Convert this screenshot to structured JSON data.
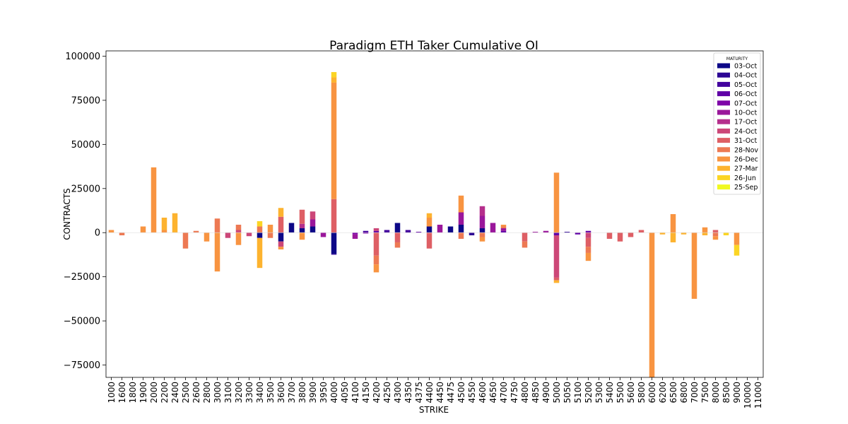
{
  "chart_data": {
    "type": "bar",
    "stacked": true,
    "title": "Paradigm ETH Taker Cumulative OI",
    "xlabel": "STRIKE",
    "ylabel": "CONTRACTS",
    "ylim": [
      -82000,
      103000
    ],
    "yticks": [
      -75000,
      -50000,
      -25000,
      0,
      25000,
      50000,
      75000,
      100000
    ],
    "ytick_labels": [
      "−75000",
      "−50000",
      "−25000",
      "0",
      "25000",
      "50000",
      "75000",
      "100000"
    ],
    "grid": false,
    "legend": {
      "title": "MATURITY",
      "position": "top-right"
    },
    "categories": [
      "1000",
      "1600",
      "1800",
      "1900",
      "2000",
      "2200",
      "2400",
      "2500",
      "2600",
      "2800",
      "3000",
      "3100",
      "3200",
      "3300",
      "3400",
      "3500",
      "3600",
      "3700",
      "3800",
      "3900",
      "3950",
      "4000",
      "4050",
      "4100",
      "4150",
      "4200",
      "4250",
      "4300",
      "4350",
      "4375",
      "4400",
      "4450",
      "4475",
      "4500",
      "4550",
      "4600",
      "4650",
      "4700",
      "4750",
      "4800",
      "4850",
      "4900",
      "5000",
      "5050",
      "5100",
      "5200",
      "5300",
      "5400",
      "5500",
      "5600",
      "5800",
      "6000",
      "6200",
      "6500",
      "6800",
      "7000",
      "7500",
      "8000",
      "8500",
      "9000",
      "10000",
      "11000"
    ],
    "series": [
      {
        "name": "03-Oct",
        "color": "#0d0887",
        "values": [
          0,
          0,
          0,
          0,
          0,
          0,
          0,
          0,
          0,
          0,
          0,
          0,
          0,
          0,
          -3000,
          0,
          -5000,
          5500,
          2500,
          3500,
          0,
          -12000,
          0,
          0,
          0,
          0,
          0,
          5500,
          0,
          0,
          3500,
          0,
          3500,
          4500,
          0,
          2500,
          0,
          0,
          0,
          0,
          0,
          0,
          0,
          0,
          0,
          0,
          0,
          0,
          0,
          0,
          0,
          0,
          0,
          0,
          0,
          0,
          0,
          0,
          0,
          0,
          0,
          0
        ]
      },
      {
        "name": "04-Oct",
        "color": "#2c0594",
        "values": [
          0,
          0,
          0,
          0,
          0,
          0,
          0,
          0,
          0,
          0,
          0,
          0,
          0,
          0,
          0,
          0,
          0,
          0,
          0,
          0,
          0,
          -500,
          0,
          0,
          0,
          0,
          0,
          0,
          0,
          0,
          0,
          0,
          0,
          0,
          -1500,
          0,
          0,
          0,
          0,
          0,
          0,
          0,
          0,
          500,
          0,
          0,
          0,
          0,
          0,
          0,
          0,
          0,
          0,
          0,
          0,
          0,
          0,
          0,
          0,
          0,
          0,
          0
        ]
      },
      {
        "name": "05-Oct",
        "color": "#43039e",
        "values": [
          0,
          0,
          0,
          0,
          0,
          0,
          0,
          0,
          0,
          0,
          0,
          0,
          0,
          0,
          0,
          0,
          0,
          0,
          0,
          0,
          0,
          0,
          0,
          0,
          1000,
          0,
          1500,
          0,
          1500,
          0,
          0,
          0,
          0,
          0,
          0,
          0,
          0,
          0,
          0,
          0,
          0,
          0,
          0,
          0,
          0,
          0,
          0,
          0,
          0,
          0,
          0,
          0,
          0,
          0,
          0,
          0,
          0,
          0,
          0,
          0,
          0,
          0
        ]
      },
      {
        "name": "06-Oct",
        "color": "#6001a6",
        "values": [
          0,
          0,
          0,
          0,
          0,
          0,
          0,
          0,
          0,
          0,
          0,
          0,
          0,
          0,
          0,
          0,
          0,
          0,
          0,
          0,
          0,
          0,
          0,
          0,
          0,
          1000,
          0,
          0,
          0,
          500,
          0,
          0,
          0,
          0,
          0,
          0,
          0,
          1000,
          0,
          0,
          0,
          0,
          -1500,
          0,
          -1000,
          1000,
          0,
          0,
          0,
          0,
          0,
          0,
          0,
          0,
          0,
          0,
          0,
          0,
          0,
          0,
          0,
          0
        ]
      },
      {
        "name": "07-Oct",
        "color": "#7e03a8",
        "values": [
          0,
          0,
          0,
          0,
          0,
          0,
          0,
          0,
          0,
          0,
          0,
          0,
          0,
          0,
          0,
          0,
          0,
          0,
          0,
          0,
          0,
          0,
          0,
          -1000,
          -500,
          0,
          0,
          0,
          0,
          0,
          0,
          0,
          0,
          0,
          0,
          0,
          0,
          0,
          0,
          0,
          0,
          0,
          0,
          0,
          0,
          0,
          0,
          0,
          0,
          0,
          0,
          0,
          0,
          0,
          0,
          0,
          0,
          0,
          0,
          0,
          0,
          0
        ]
      },
      {
        "name": "10-Oct",
        "color": "#9a179b",
        "values": [
          0,
          0,
          0,
          0,
          0,
          0,
          0,
          0,
          0,
          0,
          0,
          0,
          0,
          0,
          0,
          0,
          0,
          0,
          0,
          4000,
          -2500,
          0,
          0,
          -2500,
          0,
          0,
          0,
          0,
          0,
          0,
          0,
          4500,
          0,
          7000,
          0,
          7000,
          5500,
          1500,
          0,
          0,
          500,
          1000,
          0,
          0,
          0,
          0,
          0,
          0,
          0,
          0,
          0,
          0,
          0,
          0,
          0,
          0,
          0,
          0,
          0,
          0,
          0,
          0
        ]
      },
      {
        "name": "17-Oct",
        "color": "#b52f8c",
        "values": [
          0,
          0,
          0,
          0,
          0,
          0,
          0,
          0,
          0,
          0,
          0,
          0,
          0,
          0,
          0,
          0,
          0,
          0,
          2500,
          0,
          0,
          0,
          0,
          0,
          0,
          0,
          0,
          0,
          0,
          0,
          0,
          0,
          0,
          0,
          0,
          5500,
          0,
          0,
          0,
          0,
          0,
          0,
          0,
          0,
          0,
          0,
          0,
          0,
          0,
          0,
          0,
          0,
          0,
          0,
          0,
          0,
          0,
          0,
          0,
          0,
          0,
          0
        ]
      },
      {
        "name": "24-Oct",
        "color": "#cc4778",
        "values": [
          0,
          0,
          0,
          0,
          0,
          0,
          0,
          0,
          0,
          0,
          0,
          -3000,
          1500,
          -2000,
          0,
          0,
          -3000,
          0,
          0,
          4500,
          0,
          0,
          0,
          0,
          0,
          1500,
          0,
          0,
          0,
          0,
          0,
          0,
          0,
          0,
          0,
          0,
          0,
          0,
          0,
          0,
          0,
          0,
          -24000,
          0,
          0,
          -3000,
          0,
          0,
          0,
          0,
          0,
          0,
          0,
          0,
          0,
          0,
          0,
          0,
          0,
          0,
          0,
          0
        ]
      },
      {
        "name": "31-Oct",
        "color": "#de5f65",
        "values": [
          0,
          0,
          0,
          0,
          0,
          0,
          0,
          0,
          0,
          0,
          0,
          0,
          0,
          0,
          0,
          0,
          9000,
          0,
          8000,
          0,
          0,
          19000,
          0,
          0,
          0,
          -13000,
          0,
          -5500,
          0,
          0,
          -9000,
          0,
          0,
          0,
          0,
          0,
          0,
          0,
          0,
          -5000,
          0,
          0,
          -1500,
          0,
          0,
          -5000,
          0,
          -3500,
          -5000,
          -2500,
          1500,
          0,
          0,
          0,
          0,
          0,
          0,
          1500,
          0,
          0,
          0,
          0
        ]
      },
      {
        "name": "28-Nov",
        "color": "#ed7953",
        "values": [
          0,
          -1500,
          0,
          0,
          0,
          0,
          0,
          -9000,
          1000,
          0,
          8000,
          0,
          3000,
          0,
          3500,
          -3000,
          0,
          0,
          0,
          0,
          0,
          0,
          0,
          0,
          0,
          -5000,
          0,
          -3000,
          0,
          0,
          0,
          0,
          0,
          -3500,
          0,
          -2500,
          0,
          1000,
          0,
          -3500,
          0,
          0,
          0,
          0,
          0,
          -3500,
          0,
          0,
          0,
          0,
          0,
          0,
          0,
          0,
          0,
          0,
          0,
          -2000,
          0,
          0,
          0,
          0
        ]
      },
      {
        "name": "26-Dec",
        "color": "#f89441",
        "values": [
          1500,
          0,
          0,
          3500,
          37000,
          1500,
          0,
          0,
          0,
          -5000,
          -22000,
          0,
          -7000,
          0,
          0,
          4500,
          -1500,
          0,
          -4000,
          0,
          0,
          66000,
          0,
          0,
          0,
          -4500,
          0,
          0,
          0,
          0,
          5000,
          0,
          0,
          9500,
          0,
          -2500,
          0,
          1000,
          0,
          0,
          0,
          0,
          34000,
          0,
          0,
          -4500,
          0,
          0,
          0,
          0,
          0,
          -83000,
          0,
          10500,
          0,
          -37500,
          3000,
          -2000,
          0,
          -7000,
          0,
          0
        ]
      },
      {
        "name": "27-Mar",
        "color": "#fdb32f",
        "values": [
          0,
          0,
          0,
          0,
          0,
          7000,
          11000,
          0,
          0,
          0,
          0,
          0,
          0,
          0,
          -17000,
          0,
          5000,
          0,
          0,
          0,
          0,
          3000,
          0,
          0,
          0,
          0,
          0,
          0,
          0,
          0,
          2500,
          0,
          0,
          0,
          0,
          0,
          0,
          0,
          0,
          0,
          0,
          0,
          -1500,
          0,
          0,
          0,
          0,
          0,
          0,
          0,
          0,
          0,
          -1000,
          -5500,
          -1000,
          0,
          -1500,
          0,
          0,
          0,
          0,
          0
        ]
      },
      {
        "name": "26-Jun",
        "color": "#fbd524",
        "values": [
          0,
          0,
          0,
          0,
          0,
          0,
          0,
          0,
          0,
          0,
          0,
          0,
          0,
          0,
          3000,
          0,
          0,
          0,
          0,
          0,
          0,
          3000,
          0,
          0,
          0,
          0,
          0,
          0,
          0,
          0,
          0,
          0,
          0,
          0,
          0,
          0,
          0,
          0,
          0,
          0,
          0,
          0,
          0,
          0,
          0,
          0,
          0,
          0,
          0,
          0,
          0,
          0,
          0,
          0,
          0,
          0,
          0,
          0,
          -1500,
          -6000,
          0,
          0
        ]
      },
      {
        "name": "25-Sep",
        "color": "#f0f921",
        "values": [
          0,
          0,
          0,
          0,
          0,
          0,
          0,
          0,
          0,
          0,
          0,
          0,
          0,
          0,
          0,
          0,
          0,
          0,
          0,
          0,
          0,
          0,
          0,
          0,
          0,
          0,
          0,
          0,
          0,
          0,
          0,
          0,
          0,
          0,
          0,
          0,
          0,
          0,
          0,
          0,
          0,
          0,
          0,
          0,
          0,
          0,
          0,
          0,
          0,
          0,
          0,
          0,
          0,
          0,
          0,
          0,
          0,
          0,
          0,
          0,
          0,
          0
        ]
      }
    ]
  }
}
